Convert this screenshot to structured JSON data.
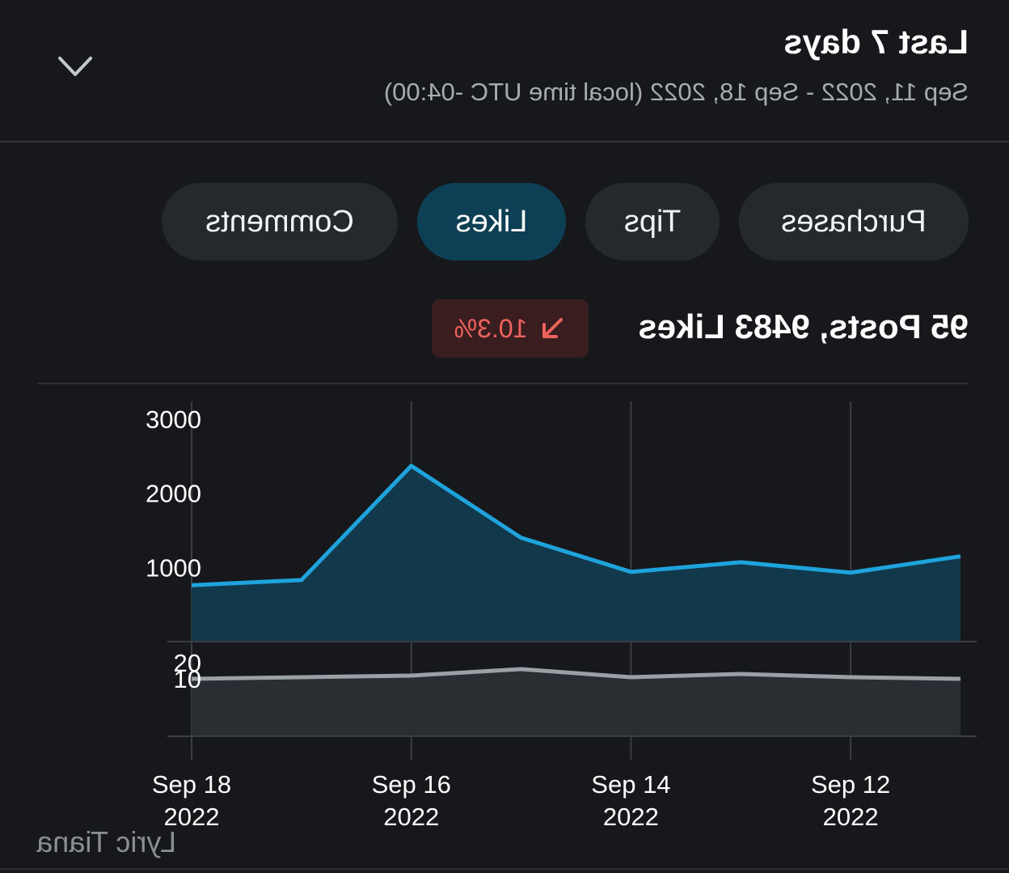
{
  "header": {
    "title": "Last 7 days",
    "subtitle": "Sep 11, 2022 - Sep 18, 2022 (local time UTC -04:00)",
    "expand_icon": "chevron-down-icon"
  },
  "tabs": [
    {
      "label": "Purchases",
      "active": false
    },
    {
      "label": "Tips",
      "active": false
    },
    {
      "label": "Likes",
      "active": true
    },
    {
      "label": "Comments",
      "active": false
    }
  ],
  "summary": {
    "text": "95 Posts, 9483 Likes",
    "change": "10.3%",
    "change_icon": "arrow-down-right-icon",
    "change_color": "#f0625e"
  },
  "watermark": "Lyric Tiana",
  "chart_data": [
    {
      "type": "area",
      "x": [
        "2022-09-11",
        "2022-09-12",
        "2022-09-13",
        "2022-09-14",
        "2022-09-15",
        "2022-09-16",
        "2022-09-17",
        "2022-09-18"
      ],
      "x_tick_labels": [
        {
          "x": "2022-09-12",
          "line1": "Sep 12",
          "line2": "2022"
        },
        {
          "x": "2022-09-14",
          "line1": "Sep 14",
          "line2": "2022"
        },
        {
          "x": "2022-09-16",
          "line1": "Sep 16",
          "line2": "2022"
        },
        {
          "x": "2022-09-18",
          "line1": "Sep 18",
          "line2": "2022"
        }
      ],
      "y": [
        1150,
        930,
        1070,
        940,
        1400,
        2370,
        830,
        760
      ],
      "yticks": [
        1000,
        2000,
        3000
      ],
      "ylim": [
        0,
        3000
      ],
      "line_color": "#1ea3dc",
      "fill_color": "#12394b"
    },
    {
      "type": "area",
      "x": [
        "2022-09-11",
        "2022-09-12",
        "2022-09-13",
        "2022-09-14",
        "2022-09-15",
        "2022-09-16",
        "2022-09-17",
        "2022-09-18"
      ],
      "y": [
        10,
        11,
        13,
        11,
        16,
        12,
        11,
        10
      ],
      "yticks": [
        10,
        20
      ],
      "ylim": [
        -10,
        20
      ],
      "line_color": "#9aa0a6",
      "fill_color": "#2a2d31"
    }
  ]
}
